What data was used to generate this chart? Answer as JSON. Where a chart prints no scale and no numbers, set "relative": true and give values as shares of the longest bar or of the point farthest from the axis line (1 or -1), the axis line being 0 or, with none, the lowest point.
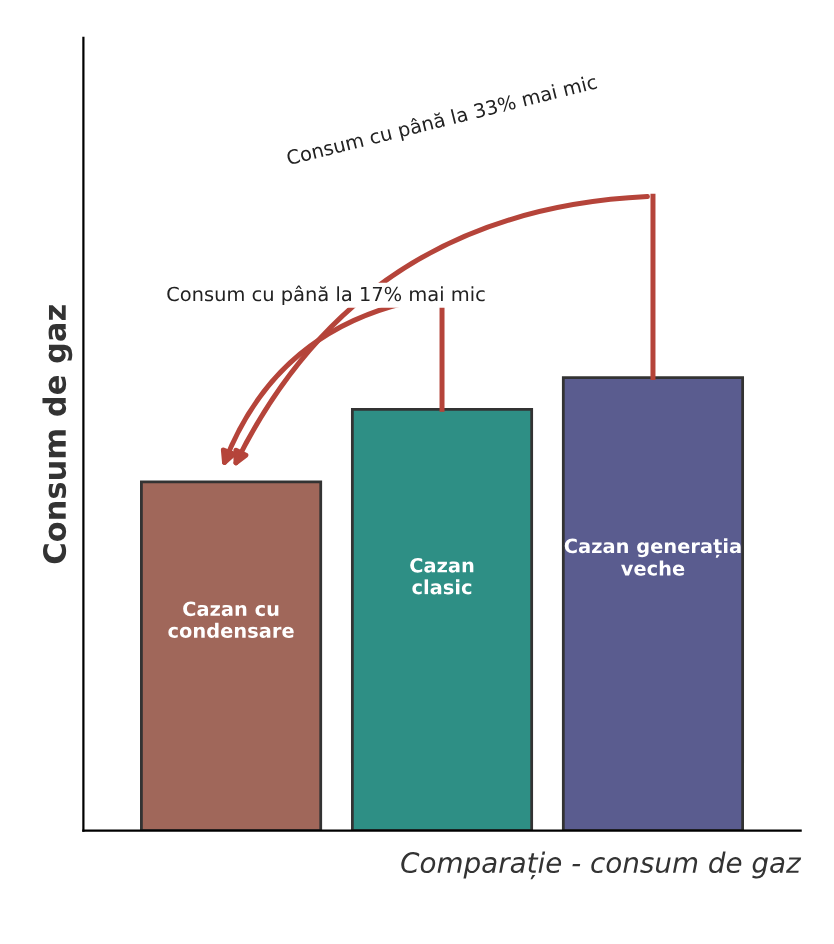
{
  "chart_data": {
    "type": "bar",
    "relative": true,
    "ylabel": "Consum de gaz",
    "xlabel": "Comparație - consum de gaz",
    "categories": [
      "Cazan cu condensare",
      "Cazan clasic",
      "Cazan generația veche"
    ],
    "values": [
      0.77,
      0.93,
      1
    ],
    "colors": [
      "#a0675a",
      "#2e8f85",
      "#5a5c8f"
    ],
    "annotations": [
      "Consum cu până la 33% mai mic",
      "Consum cu până la 17% mai mic"
    ],
    "grid": false
  }
}
